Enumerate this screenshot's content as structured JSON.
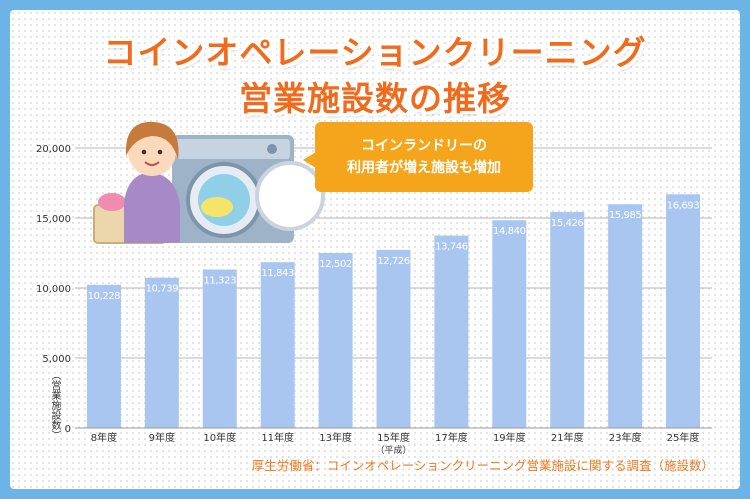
{
  "title_line1": "コインオペレーションクリーニング",
  "title_line2": "営業施設数の推移",
  "callout": {
    "line1": "コインランドリーの",
    "line2": "利用者が増え施設も増加"
  },
  "source": "厚生労働省：コインオペレーションクリーニング営業施設に関する調査（施設数）",
  "colors": {
    "bar": "#a9c6f1",
    "title": "#f26a1b",
    "callout": "#f5a51c",
    "frame": "#6cb3e6"
  },
  "chart_data": {
    "type": "bar",
    "title": "コインオペレーションクリーニング営業施設数の推移",
    "ylabel": "（営業施設数）",
    "categories": [
      "8年度",
      "9年度",
      "10年度",
      "11年度",
      "13年度",
      "15年度",
      "17年度",
      "19年度",
      "21年度",
      "23年度",
      "25年度"
    ],
    "category_notes": [
      "",
      "",
      "",
      "",
      "",
      "（平成）",
      "",
      "",
      "",
      "",
      ""
    ],
    "values": [
      10228,
      10739,
      11323,
      11843,
      12502,
      12726,
      13746,
      14840,
      15426,
      15985,
      16693
    ],
    "value_labels": [
      "10,228",
      "10,739",
      "11,323",
      "11,843",
      "12,502",
      "12,726",
      "13,746",
      "14,840",
      "15,426",
      "15,985",
      "16,693"
    ],
    "ylim": [
      0,
      20000
    ],
    "yticks": [
      0,
      5000,
      10000,
      15000,
      20000
    ],
    "ytick_labels": [
      "0",
      "5,000",
      "10,000",
      "15,000",
      "20,000"
    ],
    "grid": true,
    "legend": "none"
  }
}
